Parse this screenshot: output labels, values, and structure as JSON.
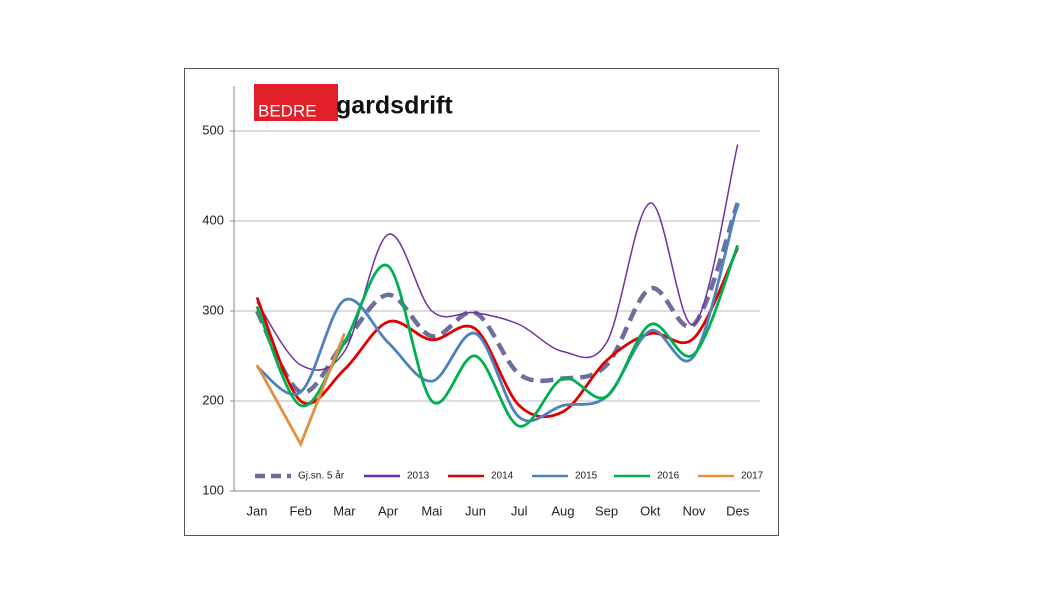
{
  "logo": {
    "left": "BEDRE",
    "right": "gardsdrift"
  },
  "chart_data": {
    "type": "line",
    "categories": [
      "Jan",
      "Feb",
      "Mar",
      "Apr",
      "Mai",
      "Jun",
      "Jul",
      "Aug",
      "Sep",
      "Okt",
      "Nov",
      "Des"
    ],
    "ylim": [
      100,
      550
    ],
    "yticks": [
      100,
      200,
      300,
      400,
      500
    ],
    "grid": true,
    "legend": "bottom",
    "series": [
      {
        "name": "Gj.sn. 5 år",
        "color": "#6b6f9e",
        "dashed": true,
        "values": [
          300,
          210,
          265,
          318,
          272,
          298,
          230,
          225,
          240,
          325,
          285,
          420
        ]
      },
      {
        "name": "2013",
        "color": "#7030a0",
        "values": [
          310,
          240,
          255,
          385,
          300,
          298,
          285,
          255,
          265,
          420,
          285,
          485
        ]
      },
      {
        "name": "2014",
        "color": "#e00000",
        "values": [
          315,
          200,
          235,
          288,
          268,
          280,
          195,
          188,
          245,
          275,
          270,
          370
        ]
      },
      {
        "name": "2015",
        "color": "#4f81bd",
        "values": [
          238,
          210,
          312,
          265,
          222,
          275,
          182,
          195,
          205,
          278,
          250,
          420
        ]
      },
      {
        "name": "2016",
        "color": "#00b050",
        "values": [
          305,
          195,
          265,
          350,
          200,
          250,
          172,
          225,
          205,
          285,
          252,
          373
        ]
      },
      {
        "name": "2017",
        "color": "#e0913f",
        "values": [
          240,
          152,
          275,
          null,
          null,
          null,
          null,
          null,
          null,
          null,
          null,
          null
        ]
      }
    ]
  }
}
